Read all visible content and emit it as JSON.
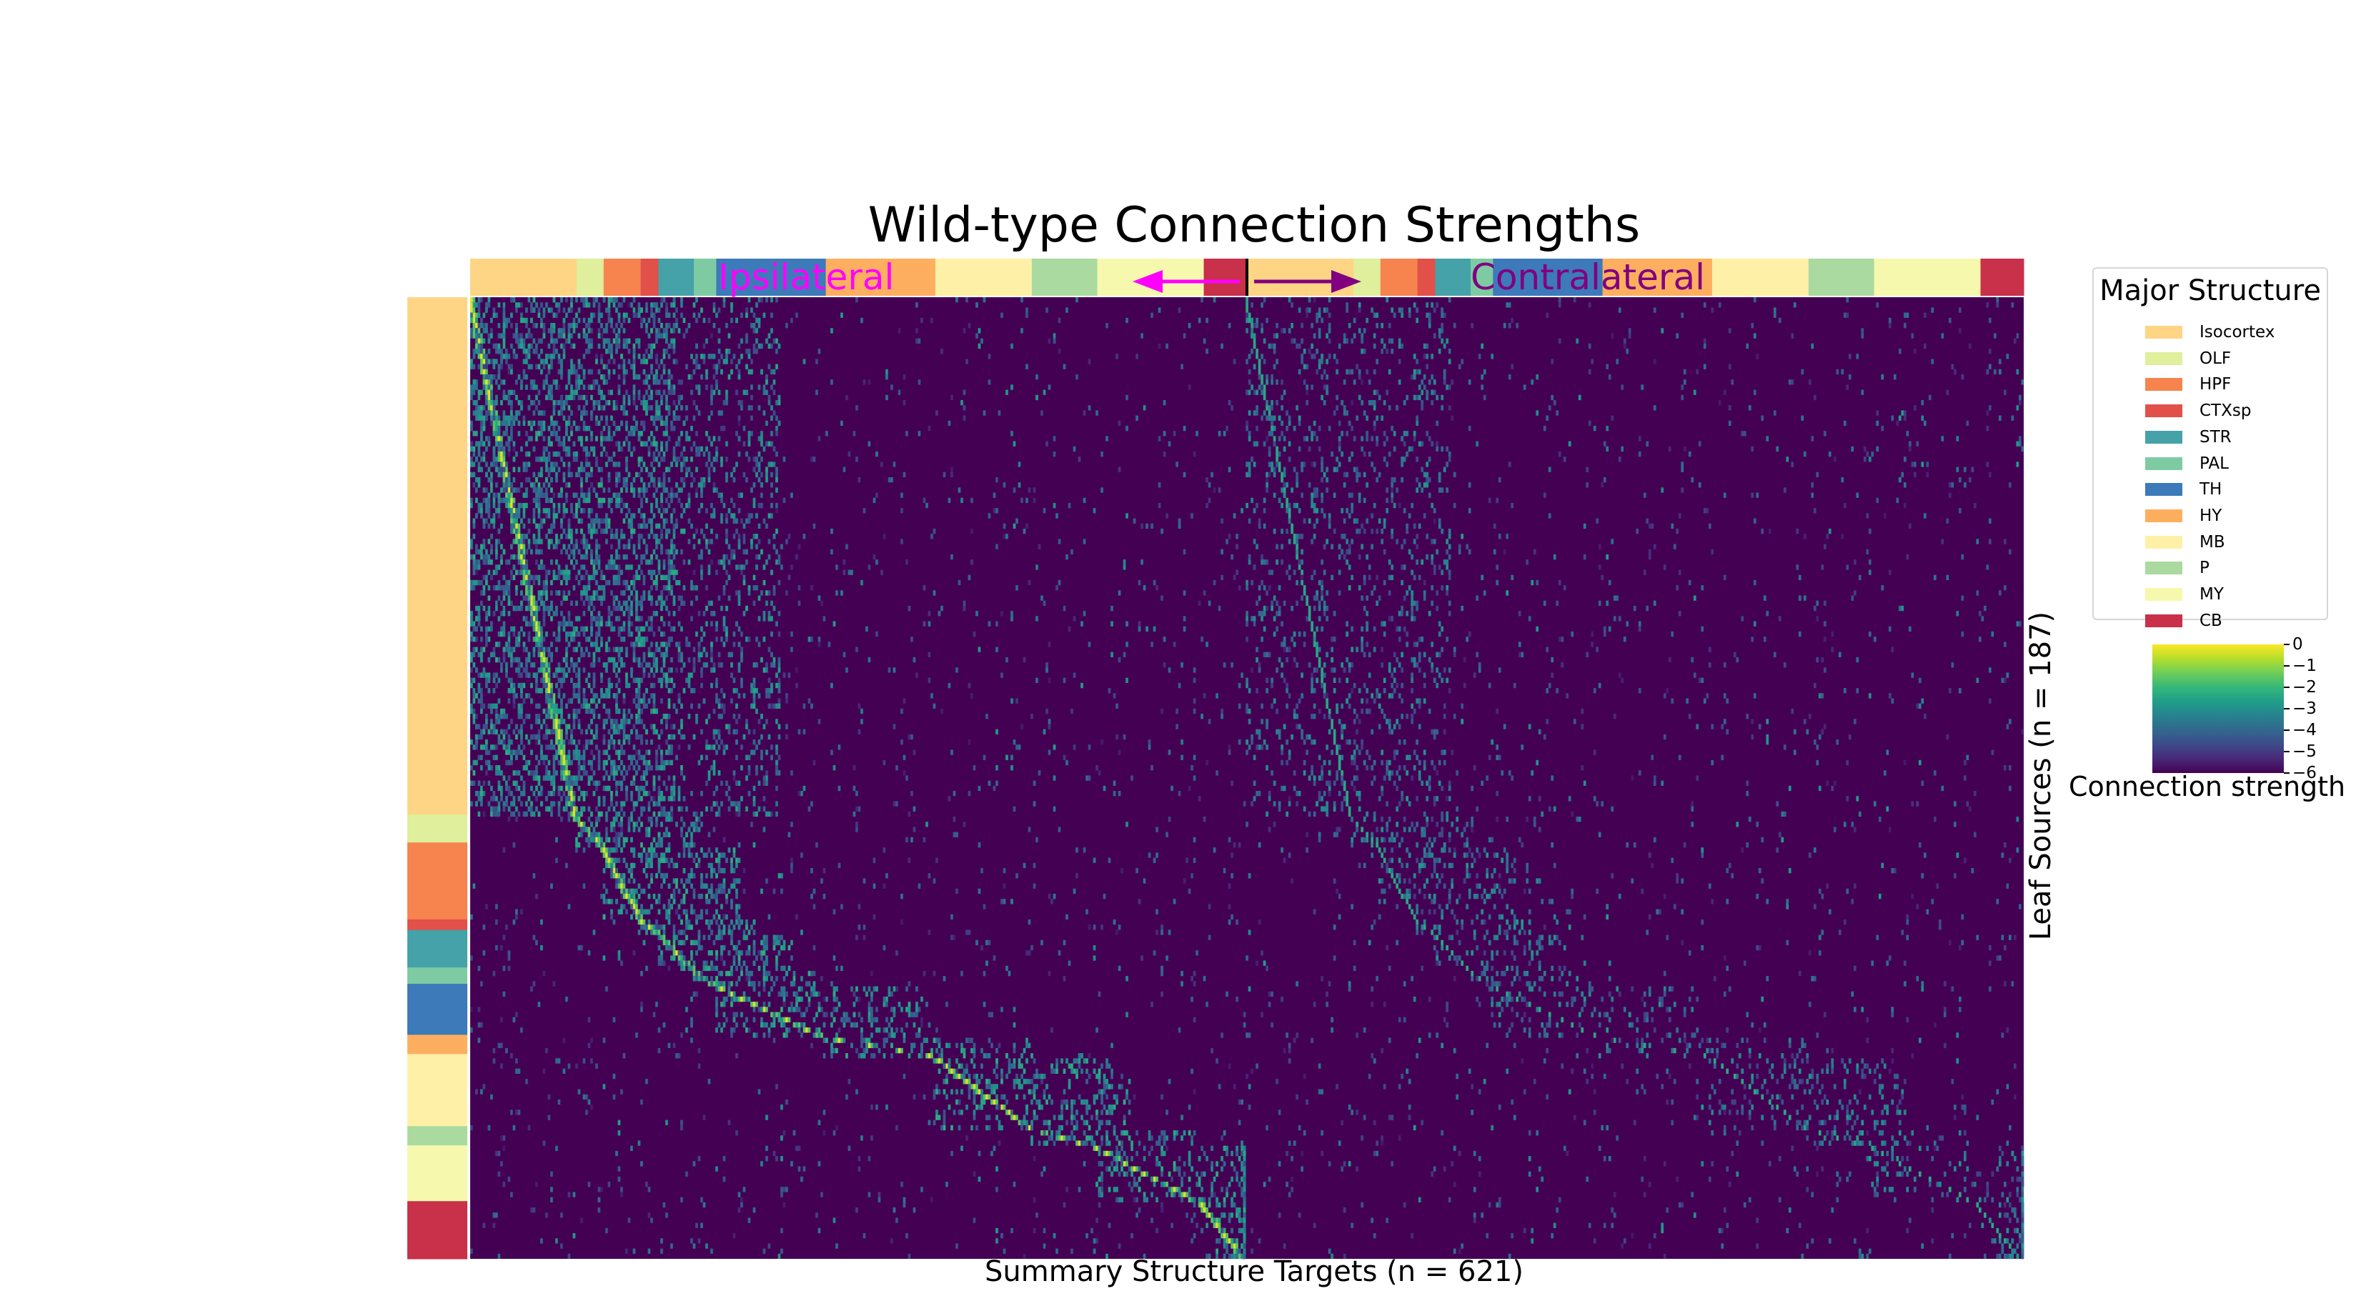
{
  "chart_data": {
    "type": "heatmap",
    "title": "Wild-type Connection Strengths",
    "xlabel": "Summary Structure Targets (n = 621)",
    "ylabel": "Leaf Sources (n = 187)",
    "n_targets": 621,
    "n_sources": 187,
    "hemisphere_labels": {
      "ipsilateral": "Ipsilateral",
      "contralateral": "Contralateral"
    },
    "annotation_colors": {
      "ipsilateral": "#ff00ff",
      "contralateral": "#800080"
    },
    "colorbar": {
      "label": "Connection strength",
      "colormap": "viridis",
      "vmin": -6,
      "vmax": 0,
      "ticks": [
        0,
        -1,
        -2,
        -3,
        -4,
        -5,
        -6
      ],
      "tick_labels": [
        "0",
        "−1",
        "−2",
        "−3",
        "−4",
        "−5",
        "−6"
      ]
    },
    "legend": {
      "title": "Major Structure",
      "placement": "right",
      "items": [
        {
          "name": "Isocortex",
          "color": "#fdd585"
        },
        {
          "name": "OLF",
          "color": "#dfef9b"
        },
        {
          "name": "HPF",
          "color": "#f7834f"
        },
        {
          "name": "CTXsp",
          "color": "#e2504a"
        },
        {
          "name": "STR",
          "color": "#45a2a9"
        },
        {
          "name": "PAL",
          "color": "#7ecba3"
        },
        {
          "name": "TH",
          "color": "#3d7ab9"
        },
        {
          "name": "HY",
          "color": "#fdaf5f"
        },
        {
          "name": "MB",
          "color": "#fef0a6"
        },
        {
          "name": "P",
          "color": "#abdaa0"
        },
        {
          "name": "MY",
          "color": "#f6f9ad"
        },
        {
          "name": "CB",
          "color": "#c9304a"
        }
      ]
    },
    "row_groups": [
      {
        "structure": "Isocortex",
        "fraction": 0.538
      },
      {
        "structure": "OLF",
        "fraction": 0.029
      },
      {
        "structure": "HPF",
        "fraction": 0.08
      },
      {
        "structure": "CTXsp",
        "fraction": 0.011
      },
      {
        "structure": "STR",
        "fraction": 0.039
      },
      {
        "structure": "PAL",
        "fraction": 0.017
      },
      {
        "structure": "TH",
        "fraction": 0.053
      },
      {
        "structure": "HY",
        "fraction": 0.02
      },
      {
        "structure": "MB",
        "fraction": 0.075
      },
      {
        "structure": "P",
        "fraction": 0.02
      },
      {
        "structure": "MY",
        "fraction": 0.058
      },
      {
        "structure": "CB",
        "fraction": 0.06
      }
    ],
    "column_groups_per_hemisphere": [
      {
        "structure": "Isocortex",
        "fraction": 0.138
      },
      {
        "structure": "OLF",
        "fraction": 0.035
      },
      {
        "structure": "HPF",
        "fraction": 0.048
      },
      {
        "structure": "CTXsp",
        "fraction": 0.023
      },
      {
        "structure": "STR",
        "fraction": 0.046
      },
      {
        "structure": "PAL",
        "fraction": 0.029
      },
      {
        "structure": "TH",
        "fraction": 0.142
      },
      {
        "structure": "HY",
        "fraction": 0.142
      },
      {
        "structure": "MB",
        "fraction": 0.125
      },
      {
        "structure": "P",
        "fraction": 0.085
      },
      {
        "structure": "MY",
        "fraction": 0.138
      },
      {
        "structure": "CB",
        "fraction": 0.056
      }
    ],
    "pattern": "strong diagonal (ipsilateral homologous targets) with fainter mirrored diagonal in contralateral hemisphere; most cells near -6"
  }
}
